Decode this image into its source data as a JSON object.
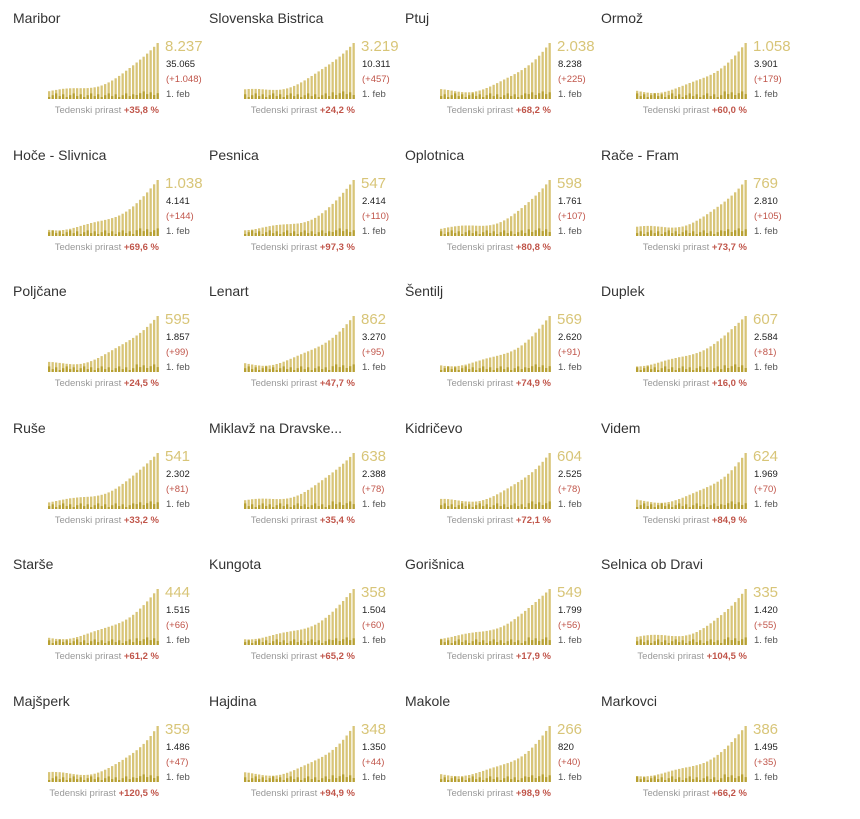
{
  "chart_data": {
    "type": "bar",
    "colors": {
      "cumulative": "#d8c578",
      "daily": "#b7a032",
      "big_number": "#d8c578",
      "delta": "#c0554a",
      "growth_value": "#c0554a",
      "growth_label": "#999999"
    },
    "growth_label": "Tedenski prirast",
    "panels": [
      {
        "name": "Maribor",
        "value": "8.237",
        "total": "35.065",
        "delta": "(+1.048)",
        "date": "1. feb",
        "growth": "+35,8 %",
        "growth_pct": 35.8,
        "rate": 8237
      },
      {
        "name": "Slovenska Bistrica",
        "value": "3.219",
        "total": "10.311",
        "delta": "(+457)",
        "date": "1. feb",
        "growth": "+24,2 %",
        "growth_pct": 24.2,
        "rate": 3219
      },
      {
        "name": "Ptuj",
        "value": "2.038",
        "total": "8.238",
        "delta": "(+225)",
        "date": "1. feb",
        "growth": "+68,2 %",
        "growth_pct": 68.2,
        "rate": 2038
      },
      {
        "name": "Ormož",
        "value": "1.058",
        "total": "3.901",
        "delta": "(+179)",
        "date": "1. feb",
        "growth": "+60,0 %",
        "growth_pct": 60.0,
        "rate": 1058
      },
      {
        "name": "Hoče - Slivnica",
        "value": "1.038",
        "total": "4.141",
        "delta": "(+144)",
        "date": "1. feb",
        "growth": "+69,6 %",
        "growth_pct": 69.6,
        "rate": 1038
      },
      {
        "name": "Pesnica",
        "value": "547",
        "total": "2.414",
        "delta": "(+110)",
        "date": "1. feb",
        "growth": "+97,3 %",
        "growth_pct": 97.3,
        "rate": 547
      },
      {
        "name": "Oplotnica",
        "value": "598",
        "total": "1.761",
        "delta": "(+107)",
        "date": "1. feb",
        "growth": "+80,8 %",
        "growth_pct": 80.8,
        "rate": 598
      },
      {
        "name": "Rače - Fram",
        "value": "769",
        "total": "2.810",
        "delta": "(+105)",
        "date": "1. feb",
        "growth": "+73,7 %",
        "growth_pct": 73.7,
        "rate": 769
      },
      {
        "name": "Poljčane",
        "value": "595",
        "total": "1.857",
        "delta": "(+99)",
        "date": "1. feb",
        "growth": "+24,5 %",
        "growth_pct": 24.5,
        "rate": 595
      },
      {
        "name": "Lenart",
        "value": "862",
        "total": "3.270",
        "delta": "(+95)",
        "date": "1. feb",
        "growth": "+47,7 %",
        "growth_pct": 47.7,
        "rate": 862
      },
      {
        "name": "Šentilj",
        "value": "569",
        "total": "2.620",
        "delta": "(+91)",
        "date": "1. feb",
        "growth": "+74,9 %",
        "growth_pct": 74.9,
        "rate": 569
      },
      {
        "name": "Duplek",
        "value": "607",
        "total": "2.584",
        "delta": "(+81)",
        "date": "1. feb",
        "growth": "+16,0 %",
        "growth_pct": 16.0,
        "rate": 607
      },
      {
        "name": "Ruše",
        "value": "541",
        "total": "2.302",
        "delta": "(+81)",
        "date": "1. feb",
        "growth": "+33,2 %",
        "growth_pct": 33.2,
        "rate": 541
      },
      {
        "name": "Miklavž na Dravske...",
        "value": "638",
        "total": "2.388",
        "delta": "(+78)",
        "date": "1. feb",
        "growth": "+35,4 %",
        "growth_pct": 35.4,
        "rate": 638
      },
      {
        "name": "Kidričevo",
        "value": "604",
        "total": "2.525",
        "delta": "(+78)",
        "date": "1. feb",
        "growth": "+72,1 %",
        "growth_pct": 72.1,
        "rate": 604
      },
      {
        "name": "Videm",
        "value": "624",
        "total": "1.969",
        "delta": "(+70)",
        "date": "1. feb",
        "growth": "+84,9 %",
        "growth_pct": 84.9,
        "rate": 624
      },
      {
        "name": "Starše",
        "value": "444",
        "total": "1.515",
        "delta": "(+66)",
        "date": "1. feb",
        "growth": "+61,2 %",
        "growth_pct": 61.2,
        "rate": 444
      },
      {
        "name": "Kungota",
        "value": "358",
        "total": "1.504",
        "delta": "(+60)",
        "date": "1. feb",
        "growth": "+65,2 %",
        "growth_pct": 65.2,
        "rate": 358
      },
      {
        "name": "Gorišnica",
        "value": "549",
        "total": "1.799",
        "delta": "(+56)",
        "date": "1. feb",
        "growth": "+17,9 %",
        "growth_pct": 17.9,
        "rate": 549
      },
      {
        "name": "Selnica ob Dravi",
        "value": "335",
        "total": "1.420",
        "delta": "(+55)",
        "date": "1. feb",
        "growth": "+104,5 %",
        "growth_pct": 104.5,
        "rate": 335
      },
      {
        "name": "Majšperk",
        "value": "359",
        "total": "1.486",
        "delta": "(+47)",
        "date": "1. feb",
        "growth": "+120,5 %",
        "growth_pct": 120.5,
        "rate": 359
      },
      {
        "name": "Hajdina",
        "value": "348",
        "total": "1.350",
        "delta": "(+44)",
        "date": "1. feb",
        "growth": "+94,9 %",
        "growth_pct": 94.9,
        "rate": 348
      },
      {
        "name": "Makole",
        "value": "266",
        "total": "820",
        "delta": "(+40)",
        "date": "1. feb",
        "growth": "+98,9 %",
        "growth_pct": 98.9,
        "rate": 266
      },
      {
        "name": "Markovci",
        "value": "386",
        "total": "1.495",
        "delta": "(+35)",
        "date": "1. feb",
        "growth": "+66,2 %",
        "growth_pct": 66.2,
        "rate": 386
      }
    ]
  }
}
